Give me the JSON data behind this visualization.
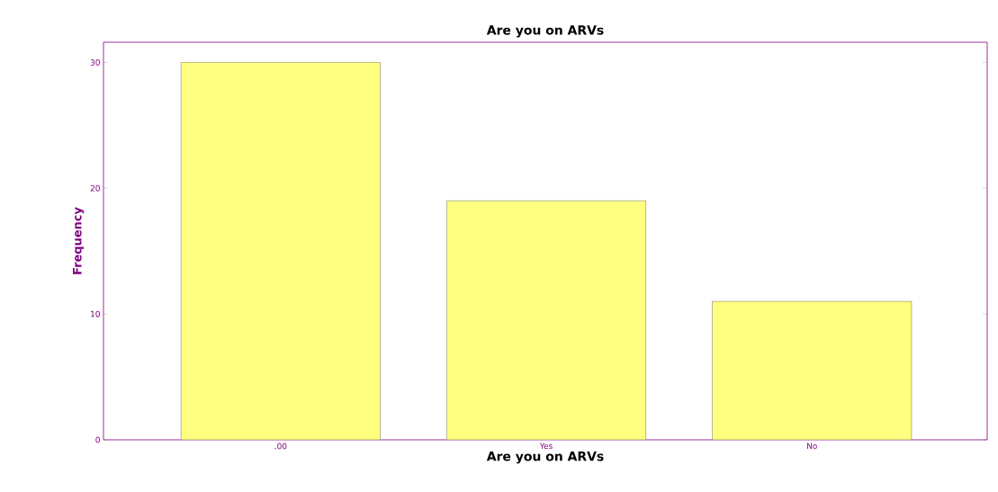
{
  "chart_data": {
    "type": "bar",
    "title": "Are you on ARVs",
    "xlabel": "Are you on ARVs",
    "ylabel": "Frequency",
    "categories": [
      ".00",
      "Yes",
      "No"
    ],
    "values": [
      30,
      19,
      11
    ],
    "color": "#ffff80",
    "ylim": [
      0,
      31.6
    ],
    "yticks": [
      0,
      10,
      20,
      30
    ]
  }
}
